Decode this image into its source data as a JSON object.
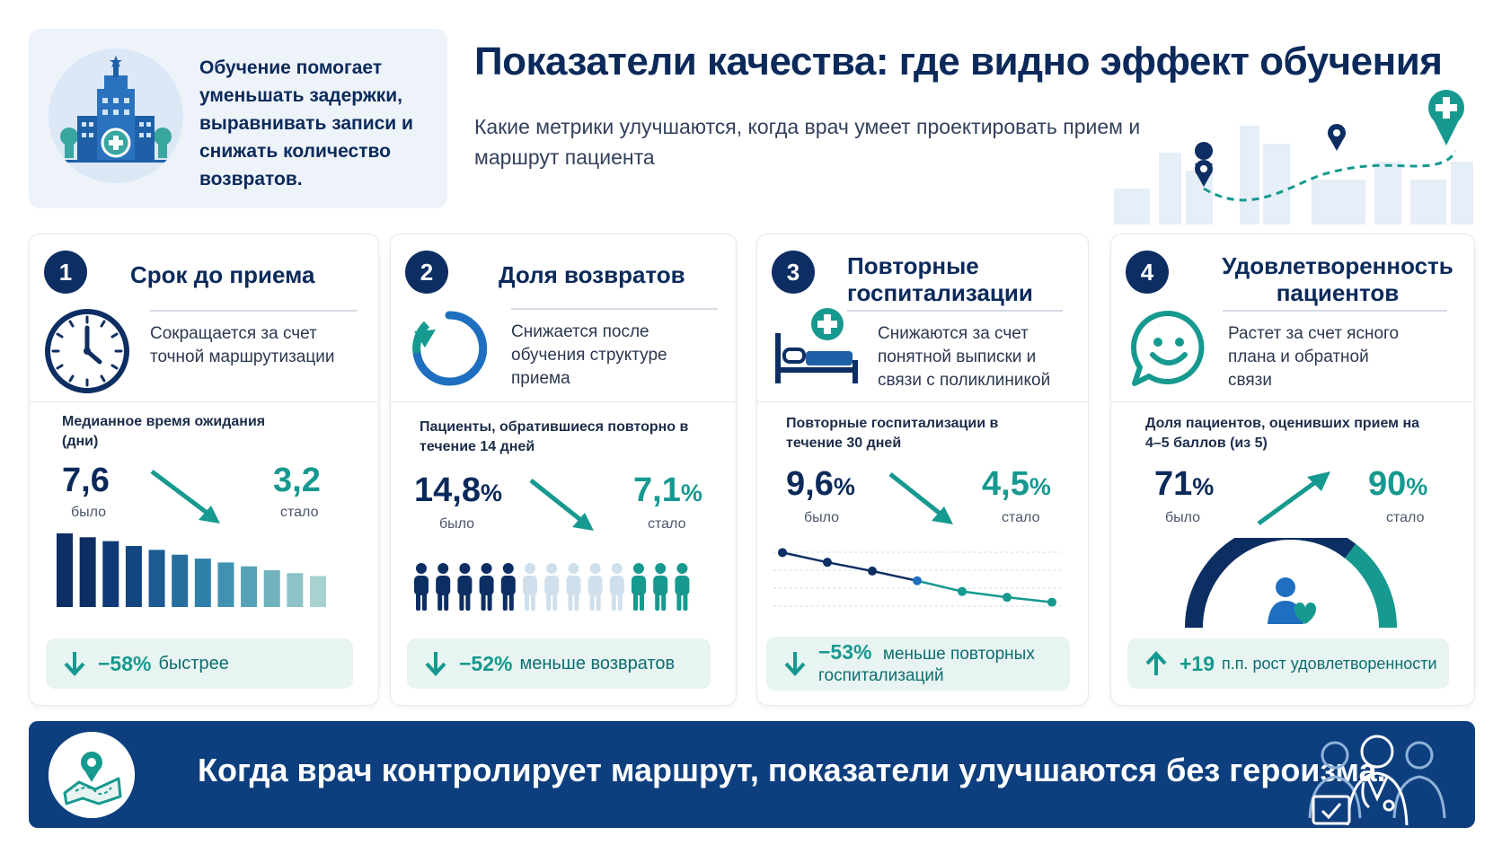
{
  "intro": {
    "text": "Обучение помогает уменьшать задержки, выравнивать записи и снижать количество возвратов."
  },
  "header": {
    "title": "Показатели качества: где видно эффект обучения",
    "subtitle": "Какие метрики улучшаются, когда врач умеет проектировать прием и маршрут пациента"
  },
  "cards": [
    {
      "number": "1",
      "title": "Срок до приема",
      "description": "Сокращается за счет точной маршрутизации",
      "icon": "clock-icon",
      "metric_label": "Медианное время ожидания (дни)",
      "before": "7,6",
      "before_label": "было",
      "after": "3,2",
      "after_label": "стало",
      "trend": "down",
      "pill_value": "−58%",
      "pill_text": "быстрее",
      "chart_data": {
        "type": "bar",
        "values": [
          7.6,
          7.2,
          6.8,
          6.3,
          5.9,
          5.4,
          5.0,
          4.6,
          4.2,
          3.8,
          3.5,
          3.2
        ],
        "colors": [
          "#0d2e63",
          "#0d2e63",
          "#0f3a75",
          "#12467f",
          "#1b5b92",
          "#256f9f",
          "#2f80a8",
          "#4192b1",
          "#55a2b8",
          "#70b3bf",
          "#8cc3c7",
          "#a8d2d0"
        ]
      }
    },
    {
      "number": "2",
      "title": "Доля возвратов",
      "description": "Снижается после обучения структуре приема",
      "icon": "refresh-icon",
      "metric_label": "Пациенты, обратившиеся повторно в течение 14 дней",
      "before": "14,8",
      "before_unit": "%",
      "before_label": "было",
      "after": "7,1",
      "after_unit": "%",
      "after_label": "стало",
      "trend": "down",
      "pill_value": "−52%",
      "pill_text": "меньше возвратов",
      "chart_data": {
        "type": "pictogram",
        "groups": [
          {
            "count": 5,
            "color": "#0d2e63"
          },
          {
            "count": 5,
            "color": "#cfe0ec"
          },
          {
            "count": 3,
            "color": "#16998f"
          }
        ]
      }
    },
    {
      "number": "3",
      "title": "Повторные госпитализации",
      "description": "Снижаются за счет понятной выписки и связи с поликлиникой",
      "icon": "hospital-bed-icon",
      "metric_label": "Повторные госпитализации в течение 30 дней",
      "before": "9,6",
      "before_unit": "%",
      "before_label": "было",
      "after": "4,5",
      "after_unit": "%",
      "after_label": "стало",
      "trend": "down",
      "pill_value": "−53%",
      "pill_text": "меньше повторных госпитализаций",
      "chart_data": {
        "type": "line",
        "values": [
          9.6,
          8.6,
          7.7,
          6.7,
          5.6,
          5.0,
          4.5
        ],
        "colors": [
          "#0d2e63",
          "#16998f"
        ]
      }
    },
    {
      "number": "4",
      "title": "Удовлетворенность пациентов",
      "description": "Растет за счет ясного плана и обратной связи",
      "icon": "smile-chat-icon",
      "metric_label": "Доля пациентов, оценивших прием на 4–5 баллов (из 5)",
      "before": "71",
      "before_unit": "%",
      "before_label": "было",
      "after": "90",
      "after_unit": "%",
      "after_label": "стало",
      "trend": "up",
      "pill_value": "+19",
      "pill_text": "п.п. рост удовлетворенности",
      "chart_data": {
        "type": "gauge",
        "before": 71,
        "after": 90,
        "max": 100,
        "colors": [
          "#0d2e63",
          "#16998f"
        ]
      }
    }
  ],
  "banner": {
    "text": "Когда врач контролирует маршрут, показатели улучшаются без героизма."
  },
  "colors": {
    "navy": "#0d2e63",
    "teal": "#16998f",
    "banner": "#0d3f7f",
    "pill_bg": "#e8f4f1"
  }
}
